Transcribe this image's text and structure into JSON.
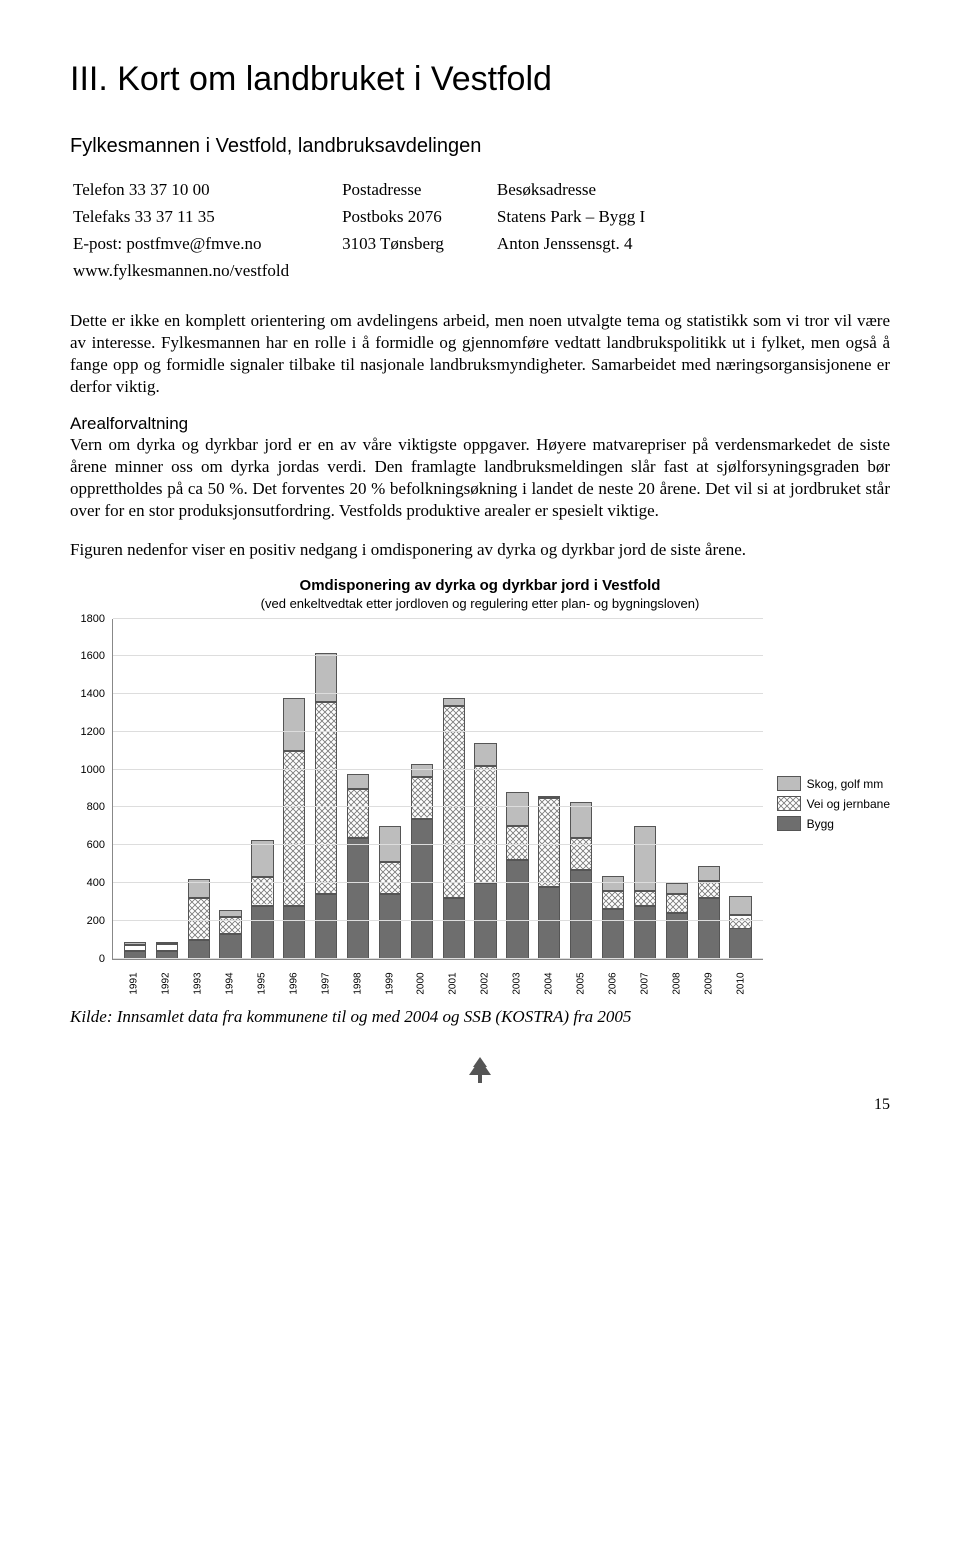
{
  "title": "III.  Kort om landbruket i Vestfold",
  "subhead": "Fylkesmannen i Vestfold, landbruksavdelingen",
  "contact": {
    "rows": [
      [
        "Telefon 33 37 10 00",
        "Postadresse",
        "Besøksadresse"
      ],
      [
        "Telefaks 33 37 11 35",
        "Postboks 2076",
        "Statens Park – Bygg I"
      ],
      [
        "E-post: postfmve@fmve.no",
        "3103 Tønsberg",
        "Anton Jenssensgt. 4"
      ],
      [
        "www.fylkesmannen.no/vestfold",
        "",
        ""
      ]
    ]
  },
  "para1": "Dette er ikke en komplett orientering om avdelingens arbeid, men noen utvalgte tema og statistikk som vi tror vil være av interesse. Fylkesmannen har en rolle i å formidle og gjennomføre vedtatt landbrukspolitikk ut i fylket, men også å fange opp og formidle signaler tilbake til nasjonale landbruksmyndigheter. Samarbeidet med næringsorgansisjonene er derfor viktig.",
  "section_label": "Arealforvaltning",
  "para2": "Vern om dyrka og dyrkbar jord er en av våre viktigste oppgaver. Høyere matvarepriser på verdensmarkedet de siste årene minner oss om dyrka jordas verdi. Den framlagte landbruksmeldingen slår fast at sjølforsyningsgraden bør opprettholdes på ca 50 %. Det forventes 20 % befolkningsøkning i landet de neste 20 årene. Det vil si at jordbruket står over for en stor produksjonsutfordring. Vestfolds produktive arealer er spesielt viktige.",
  "para3": "Figuren nedenfor viser en positiv nedgang i omdisponering av dyrka og dyrkbar jord de siste årene.",
  "chart": {
    "title": "Omdisponering av dyrka og dyrkbar jord i Vestfold",
    "subtitle": "(ved enkeltvedtak etter jordloven og regulering etter plan- og bygningsloven)",
    "type": "stacked-bar",
    "ylim": [
      0,
      1800
    ],
    "ytick_step": 200,
    "yticks": [
      0,
      200,
      400,
      600,
      800,
      1000,
      1200,
      1400,
      1600,
      1800
    ],
    "categories": [
      "1991",
      "1992",
      "1993",
      "1994",
      "1995",
      "1996",
      "1997",
      "1998",
      "1999",
      "2000",
      "2001",
      "2002",
      "2003",
      "2004",
      "2005",
      "2006",
      "2007",
      "2008",
      "2009",
      "2010"
    ],
    "series": [
      {
        "name": "Bygg",
        "color": "#6e6e6e",
        "pattern": "solid"
      },
      {
        "name": "Vei og jernbane",
        "color": "#ffffff",
        "pattern": "cross"
      },
      {
        "name": "Skog, golf mm",
        "color": "#bdbdbd",
        "pattern": "solid"
      }
    ],
    "data": [
      [
        40,
        30,
        20
      ],
      [
        40,
        40,
        0
      ],
      [
        100,
        220,
        100
      ],
      [
        130,
        90,
        40
      ],
      [
        280,
        150,
        200
      ],
      [
        280,
        820,
        280
      ],
      [
        340,
        1020,
        260
      ],
      [
        640,
        260,
        80
      ],
      [
        340,
        170,
        190
      ],
      [
        740,
        220,
        70
      ],
      [
        320,
        1020,
        40
      ],
      [
        400,
        620,
        120
      ],
      [
        520,
        180,
        180
      ],
      [
        380,
        470,
        0
      ],
      [
        470,
        170,
        190
      ],
      [
        260,
        100,
        80
      ],
      [
        280,
        80,
        340
      ],
      [
        240,
        100,
        60
      ],
      [
        320,
        90,
        80
      ],
      [
        160,
        70,
        100
      ]
    ],
    "legend_order": [
      "Skog, golf mm",
      "Vei og jernbane",
      "Bygg"
    ],
    "grid_color": "#dddddd",
    "axis_color": "#888888"
  },
  "source": "Kilde: Innsamlet data fra kommunene til og med 2004 og SSB (KOSTRA) fra 2005",
  "page_number": "15"
}
